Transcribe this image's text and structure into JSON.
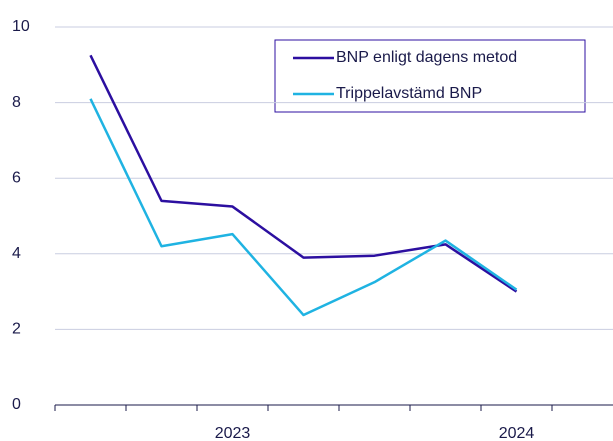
{
  "chart_data": {
    "type": "line",
    "categories": [
      null,
      null,
      "2023",
      null,
      null,
      null,
      "2024"
    ],
    "series": [
      {
        "name": "BNP enligt dagens metod",
        "color": "#2c0fa0",
        "values": [
          9.25,
          5.4,
          5.25,
          3.9,
          3.95,
          4.25,
          3.0
        ]
      },
      {
        "name": "Trippelavstämd BNP",
        "color": "#1fb3e2",
        "values": [
          8.1,
          4.2,
          4.52,
          2.38,
          3.25,
          4.35,
          3.05
        ]
      }
    ],
    "ylim": [
      0,
      10
    ],
    "yticks": [
      0,
      2,
      4,
      6,
      8,
      10
    ],
    "grid": true,
    "legend": "top-right"
  }
}
